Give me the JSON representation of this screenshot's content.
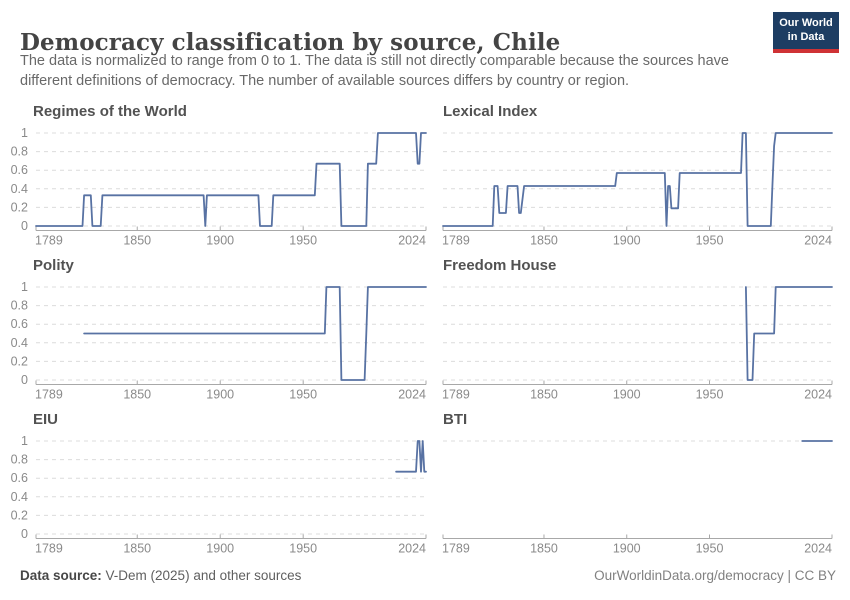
{
  "header": {
    "title": "Democracy classification by source, Chile",
    "subtitle": "The data is normalized to range from 0 to 1. The data is still not directly comparable because the sources have different definitions of democracy. The number of available sources differs by country or region.",
    "logo": {
      "line1": "Our World",
      "line2": "in Data",
      "bg_color": "#1d3d63",
      "bar_color": "#cf3235"
    }
  },
  "footer": {
    "source_label": "Data source:",
    "source_text": " V-Dem (2025) and other sources",
    "right_text": "OurWorldinData.org/democracy | CC BY"
  },
  "colors": {
    "line": "#5872a3",
    "grid": "#dcdcdc",
    "axis": "#a8a8a8",
    "tick_label": "#8a8a8a"
  },
  "axis": {
    "x_domain": [
      1789,
      2024
    ],
    "x_ticks": [
      1789,
      1850,
      1900,
      1950,
      2024
    ],
    "x_tick_labels": [
      "1789",
      "1850",
      "1900",
      "1950",
      "2024"
    ],
    "y_ticks": [
      1,
      0.8,
      0.6,
      0.4,
      0.2,
      0
    ],
    "y_tick_labels": [
      "1",
      "0.8",
      "0.6",
      "0.4",
      "0.2",
      "0"
    ]
  },
  "chart_data": [
    {
      "type": "line",
      "title": "Regimes of the World",
      "col": 0,
      "row": 0,
      "show_y_labels": true,
      "gridlines": [
        0,
        0.2,
        0.4,
        0.6,
        0.8,
        1
      ],
      "ylim": [
        0,
        1
      ],
      "points": [
        [
          1789,
          0
        ],
        [
          1817,
          0
        ],
        [
          1818,
          0.33
        ],
        [
          1822,
          0.33
        ],
        [
          1823,
          0
        ],
        [
          1828,
          0
        ],
        [
          1829,
          0.33
        ],
        [
          1890,
          0.33
        ],
        [
          1891,
          0
        ],
        [
          1892,
          0.33
        ],
        [
          1923,
          0.33
        ],
        [
          1924,
          0
        ],
        [
          1931,
          0
        ],
        [
          1932,
          0.33
        ],
        [
          1957,
          0.33
        ],
        [
          1958,
          0.67
        ],
        [
          1972,
          0.67
        ],
        [
          1973,
          0
        ],
        [
          1988,
          0
        ],
        [
          1989,
          0.67
        ],
        [
          1994,
          0.67
        ],
        [
          1995,
          1
        ],
        [
          2018,
          1
        ],
        [
          2019,
          0.67
        ],
        [
          2020,
          0.67
        ],
        [
          2021,
          1
        ],
        [
          2024,
          1
        ]
      ]
    },
    {
      "type": "line",
      "title": "Lexical Index",
      "col": 1,
      "row": 0,
      "show_y_labels": false,
      "gridlines": [
        0,
        0.2,
        0.4,
        0.6,
        0.8,
        1
      ],
      "ylim": [
        0,
        1
      ],
      "points": [
        [
          1789,
          0
        ],
        [
          1819,
          0
        ],
        [
          1820,
          0.43
        ],
        [
          1822,
          0.43
        ],
        [
          1823,
          0.14
        ],
        [
          1827,
          0.14
        ],
        [
          1828,
          0.43
        ],
        [
          1834,
          0.43
        ],
        [
          1835,
          0.14
        ],
        [
          1836,
          0.14
        ],
        [
          1838,
          0.43
        ],
        [
          1893,
          0.43
        ],
        [
          1894,
          0.57
        ],
        [
          1923,
          0.57
        ],
        [
          1924,
          0
        ],
        [
          1925,
          0.43
        ],
        [
          1926,
          0.43
        ],
        [
          1927,
          0.19
        ],
        [
          1931,
          0.19
        ],
        [
          1932,
          0.57
        ],
        [
          1969,
          0.57
        ],
        [
          1970,
          1
        ],
        [
          1972,
          1
        ],
        [
          1973,
          0
        ],
        [
          1987,
          0
        ],
        [
          1988,
          0.43
        ],
        [
          1989,
          0.86
        ],
        [
          1990,
          1
        ],
        [
          2024,
          1
        ]
      ]
    },
    {
      "type": "line",
      "title": "Polity",
      "col": 0,
      "row": 1,
      "show_y_labels": true,
      "gridlines": [
        0,
        0.2,
        0.4,
        0.6,
        0.8,
        1
      ],
      "ylim": [
        0,
        1
      ],
      "points": [
        [
          1818,
          0.5
        ],
        [
          1963,
          0.5
        ],
        [
          1964,
          1
        ],
        [
          1972,
          1
        ],
        [
          1973,
          0
        ],
        [
          1987,
          0
        ],
        [
          1988,
          0.5
        ],
        [
          1989,
          1
        ],
        [
          2024,
          1
        ]
      ]
    },
    {
      "type": "line",
      "title": "Freedom House",
      "col": 1,
      "row": 1,
      "show_y_labels": false,
      "gridlines": [
        0,
        0.2,
        0.4,
        0.6,
        0.8,
        1
      ],
      "ylim": [
        0,
        1
      ],
      "points": [
        [
          1972,
          1
        ],
        [
          1973,
          0
        ],
        [
          1976,
          0
        ],
        [
          1977,
          0.5
        ],
        [
          1989,
          0.5
        ],
        [
          1990,
          1
        ],
        [
          2024,
          1
        ]
      ]
    },
    {
      "type": "line",
      "title": "EIU",
      "col": 0,
      "row": 2,
      "show_y_labels": true,
      "gridlines": [
        0,
        0.2,
        0.4,
        0.6,
        0.8,
        1
      ],
      "ylim": [
        0,
        1
      ],
      "points": [
        [
          2006,
          0.67
        ],
        [
          2018,
          0.67
        ],
        [
          2019,
          1
        ],
        [
          2020,
          1
        ],
        [
          2021,
          0.67
        ],
        [
          2022,
          1
        ],
        [
          2023,
          0.67
        ],
        [
          2024,
          0.67
        ]
      ]
    },
    {
      "type": "line",
      "title": "BTI",
      "col": 1,
      "row": 2,
      "show_y_labels": false,
      "gridlines": [
        1
      ],
      "ylim": [
        0,
        1
      ],
      "points": [
        [
          2006,
          1
        ],
        [
          2024,
          1
        ]
      ]
    }
  ]
}
